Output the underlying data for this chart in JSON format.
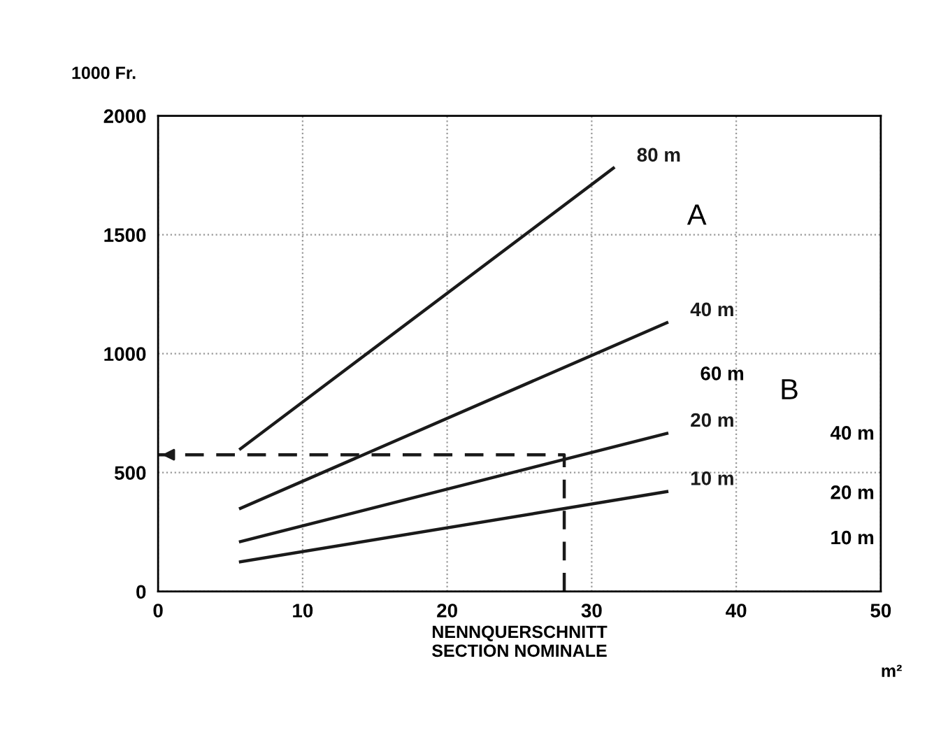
{
  "chart_data": {
    "type": "line",
    "ylabel": "1000 Fr.",
    "xlabel": "NENNQUERSCHNITT\nSECTION NOMINALE",
    "xlim": [
      0,
      50
    ],
    "xticks": [
      0,
      10,
      20,
      30,
      40,
      50
    ],
    "ylim": [
      0,
      2000
    ],
    "yticks": [
      0,
      500,
      1000,
      1500,
      2000
    ],
    "grid": true,
    "series": [
      {
        "name": "80 m",
        "color": "#1a1a1a",
        "x": [
          5.7,
          31.5
        ],
        "values": [
          600,
          1780
        ]
      },
      {
        "name": "40 m",
        "color": "#1a1a1a",
        "x": [
          5.7,
          35.2
        ],
        "values": [
          350,
          1130
        ]
      },
      {
        "name": "20 m",
        "color": "#1a1a1a",
        "x": [
          5.7,
          35.2
        ],
        "values": [
          210,
          665
        ]
      },
      {
        "name": "10 m",
        "color": "#1a1a1a",
        "x": [
          5.7,
          35.2
        ],
        "values": [
          125,
          420
        ]
      },
      {
        "color": "#1a1a1a",
        "x": [
          28.1,
          28.1,
          0
        ],
        "values": [
          0,
          575,
          575
        ],
        "line_style": "dashed"
      }
    ],
    "annotations": [
      "A",
      "60 m",
      "B",
      "40 m",
      "20 m",
      "10 m",
      "m²"
    ]
  }
}
